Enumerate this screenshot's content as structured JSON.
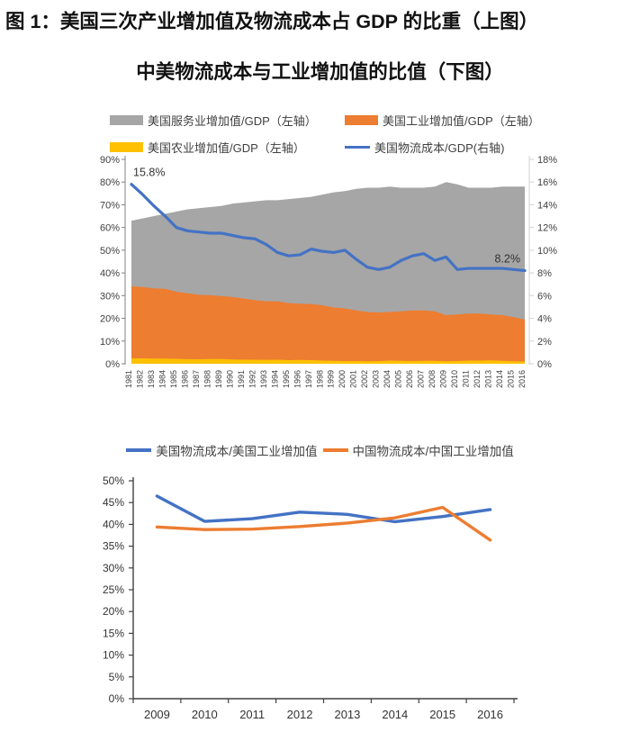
{
  "figure": {
    "title_line1": "图 1：美国三次产业增加值及物流成本占 GDP 的比重（上图）",
    "title_line2": "中美物流成本与工业增加值的比值（下图）"
  },
  "colors": {
    "services_gray": "#a6a6a6",
    "industry_orange": "#ed7d31",
    "agriculture_yellow": "#ffc000",
    "logistics_blue": "#4472c4",
    "tick_text": "#404040",
    "left_axis_line": "#808080",
    "right_axis_line": "#d9d9d9",
    "bottom_axis_line": "#404040"
  },
  "chart_data": [
    {
      "id": "us-gdp-structure",
      "type": "area",
      "title": "美国三次产业增加值及物流成本占GDP的比重",
      "x": [
        1981,
        1982,
        1983,
        1984,
        1985,
        1986,
        1987,
        1988,
        1989,
        1990,
        1991,
        1992,
        1993,
        1994,
        1995,
        1996,
        1997,
        1998,
        1999,
        2000,
        2001,
        2002,
        2003,
        2004,
        2005,
        2006,
        2007,
        2008,
        2009,
        2010,
        2011,
        2012,
        2013,
        2014,
        2015,
        2016
      ],
      "left_axis": {
        "min": 0,
        "max": 90,
        "step": 10,
        "ticks": [
          "90%",
          "80%",
          "70%",
          "60%",
          "50%",
          "40%",
          "30%",
          "20%",
          "10%",
          "0%"
        ]
      },
      "right_axis": {
        "min": 0,
        "max": 18,
        "step": 2,
        "ticks": [
          "18%",
          "16%",
          "14%",
          "12%",
          "10%",
          "8%",
          "6%",
          "4%",
          "2%",
          "0%"
        ]
      },
      "series": [
        {
          "name": "美国服务业增加值/GDP（左轴）",
          "kind": "stacked-area",
          "axis": "left",
          "color": "#a6a6a6",
          "values": [
            28.9,
            30.2,
            31.8,
            33.0,
            35.3,
            37.0,
            38.1,
            38.8,
            39.7,
            41.1,
            42.3,
            43.5,
            44.5,
            44.5,
            45.8,
            46.6,
            47.2,
            48.8,
            50.7,
            51.6,
            53.5,
            54.7,
            54.9,
            55.2,
            54.4,
            54.0,
            54.0,
            54.9,
            58.6,
            57.3,
            55.4,
            55.4,
            55.8,
            56.6,
            57.5,
            58.5
          ]
        },
        {
          "name": "美国工业增加值/GDP（左轴）",
          "kind": "stacked-area",
          "axis": "left",
          "color": "#ed7d31",
          "values": [
            31.7,
            31.4,
            30.9,
            30.7,
            29.5,
            29.0,
            28.4,
            28.1,
            27.7,
            27.5,
            26.9,
            26.2,
            25.8,
            25.7,
            25.1,
            24.7,
            24.7,
            24.3,
            23.5,
            23.2,
            22.3,
            21.7,
            21.4,
            21.4,
            21.8,
            22.3,
            22.2,
            21.8,
            20.3,
            20.5,
            20.7,
            20.7,
            20.2,
            20.1,
            19.4,
            18.5
          ]
        },
        {
          "name": "美国农业增加值/GDP（左轴）",
          "kind": "stacked-area",
          "axis": "left",
          "color": "#ffc000",
          "values": [
            2.4,
            2.4,
            2.3,
            2.3,
            2.2,
            2.0,
            2.0,
            2.1,
            2.1,
            1.9,
            1.8,
            1.8,
            1.7,
            1.8,
            1.6,
            1.7,
            1.6,
            1.4,
            1.3,
            1.2,
            1.2,
            1.1,
            1.2,
            1.4,
            1.3,
            1.2,
            1.3,
            1.3,
            1.1,
            1.2,
            1.4,
            1.4,
            1.5,
            1.3,
            1.1,
            1.0
          ]
        },
        {
          "name": "美国物流成本/GDP(右轴)",
          "kind": "line",
          "axis": "right",
          "color": "#4472c4",
          "values": [
            15.8,
            14.9,
            13.9,
            13.0,
            12.0,
            11.7,
            11.6,
            11.5,
            11.5,
            11.3,
            11.1,
            11.0,
            10.5,
            9.8,
            9.5,
            9.6,
            10.1,
            9.9,
            9.8,
            10.0,
            9.2,
            8.5,
            8.3,
            8.5,
            9.1,
            9.5,
            9.7,
            9.1,
            9.4,
            8.3,
            8.4,
            8.4,
            8.4,
            8.4,
            8.3,
            8.2
          ]
        }
      ],
      "annotations": [
        {
          "text": "15.8%",
          "year": 1981,
          "value": 15.8,
          "axis": "right",
          "align": "start"
        },
        {
          "text": "8.2%",
          "year": 2016,
          "value": 8.2,
          "axis": "right",
          "align": "end"
        }
      ]
    },
    {
      "id": "logistics-to-industry-ratio",
      "type": "line",
      "title": "中美物流成本与工业增加值的比值",
      "x": [
        2009,
        2010,
        2011,
        2012,
        2013,
        2014,
        2015,
        2016
      ],
      "y_axis": {
        "min": 0,
        "max": 50,
        "step": 5,
        "ticks": [
          "50%",
          "45%",
          "40%",
          "35%",
          "30%",
          "25%",
          "20%",
          "15%",
          "10%",
          "5%",
          "0%"
        ]
      },
      "series": [
        {
          "name": "美国物流成本/美国工业增加值",
          "kind": "line",
          "color": "#4472c4",
          "values": [
            46.5,
            40.7,
            41.3,
            42.8,
            42.3,
            40.6,
            41.8,
            43.4
          ]
        },
        {
          "name": "中国物流成本/中国工业增加值",
          "kind": "line",
          "color": "#ed7d31",
          "values": [
            39.4,
            38.8,
            38.9,
            39.5,
            40.3,
            41.5,
            43.9,
            36.4
          ]
        }
      ]
    }
  ]
}
